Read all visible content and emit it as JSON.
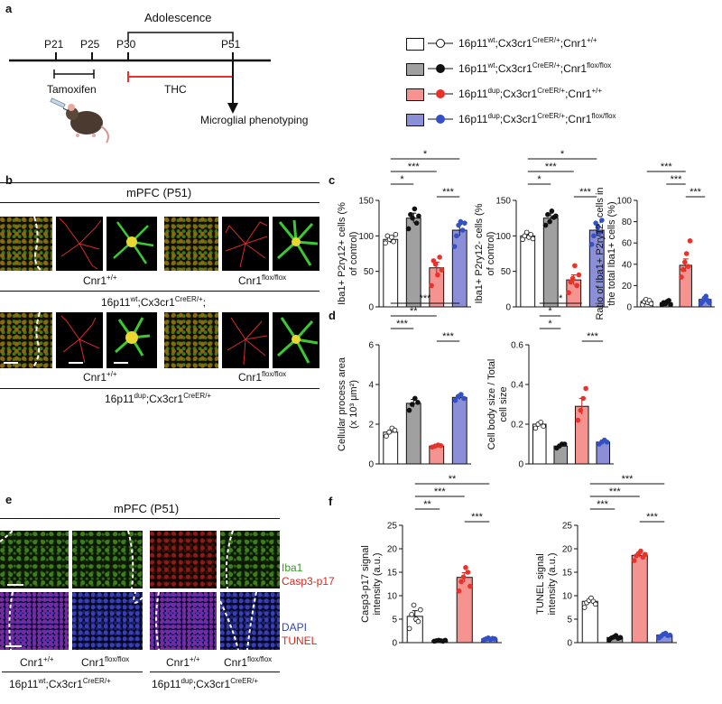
{
  "panel_a": {
    "label": "a",
    "adolescence": "Adolescence",
    "timepoints": [
      "P21",
      "P25",
      "P30",
      "P51"
    ],
    "tamoxifen": "Tamoxifen",
    "thc": "THC",
    "endpoint": "Microglial phenotyping"
  },
  "legend": {
    "entries": [
      {
        "base": "16p11",
        "sup1": "wt",
        "mid": ";Cx3cr1",
        "sup2": "CreER/+",
        "tail": ";Cnr1",
        "sup3": "+/+",
        "color": "#ffffff"
      },
      {
        "base": "16p11",
        "sup1": "wt",
        "mid": ";Cx3cr1",
        "sup2": "CreER/+",
        "tail": ";Cnr1",
        "sup3": "flox/flox",
        "color": "#a0a0a0"
      },
      {
        "base": "16p11",
        "sup1": "dup",
        "mid": ";Cx3cr1",
        "sup2": "CreER/+",
        "tail": ";Cnr1",
        "sup3": "+/+",
        "color": "#f4938f"
      },
      {
        "base": "16p11",
        "sup1": "dup",
        "mid": ";Cx3cr1",
        "sup2": "CreER/+",
        "tail": ";Cnr1",
        "sup3": "flox/flox",
        "color": "#8a8fd8"
      }
    ],
    "dot_colors": [
      "#ffffff",
      "#111111",
      "#e8322a",
      "#3350c8"
    ]
  },
  "panel_b": {
    "label": "b",
    "title": "mPFC (P51)",
    "cnr1_pp": "Cnr1",
    "cnr1_pp_sup": "+/+",
    "cnr1_ff": "Cnr1",
    "cnr1_ff_sup": "flox/flox",
    "wt_geno": "16p11",
    "wt_geno_sup": "wt",
    "wt_geno_mid": ";Cx3cr1",
    "wt_geno_sup2": "CreER/+",
    "wt_geno_tail": ";",
    "dup_geno": "16p11",
    "dup_geno_sup": "dup",
    "dup_geno_mid": ";Cx3cr1",
    "dup_geno_sup2": "CreER/+"
  },
  "panel_c": {
    "label": "c"
  },
  "panel_d": {
    "label": "d"
  },
  "panel_e": {
    "label": "e",
    "title": "mPFC (P51)",
    "iba1": "Iba1",
    "casp": "Casp3-p17",
    "dapi": "DAPI",
    "tunel": "TUNEL",
    "cnr1": "Cnr1",
    "pp": "+/+",
    "ff": "flox/flox",
    "wt_geno": "16p11",
    "wt_sup": "wt",
    "dup_sup": "dup",
    "geno_mid": ";Cx3cr1",
    "geno_sup2": "CreER/+"
  },
  "panel_f": {
    "label": "f"
  },
  "chart_data": [
    {
      "id": "c1",
      "type": "bar",
      "ylabel": "Iba1+ P2ry12+ cells (% of control)",
      "ylim": [
        0,
        150
      ],
      "ticks": [
        0,
        50,
        100,
        150
      ],
      "values": [
        95,
        125,
        55,
        108
      ],
      "errors": [
        5,
        7,
        8,
        8
      ],
      "points": [
        [
          90,
          100,
          95,
          98,
          92,
          102
        ],
        [
          110,
          130,
          125,
          138,
          118,
          128
        ],
        [
          30,
          65,
          60,
          45,
          70,
          52
        ],
        [
          85,
          100,
          115,
          120,
          108,
          118
        ]
      ],
      "significance": [
        {
          "from": 0,
          "to": 3,
          "label": "*"
        },
        {
          "from": 0,
          "to": 2,
          "label": "***"
        },
        {
          "from": 0,
          "to": 1,
          "label": "*"
        },
        {
          "from": 2,
          "to": 3,
          "label": "***"
        }
      ]
    },
    {
      "id": "c2",
      "type": "bar",
      "ylabel": "Iba1+ P2ry12- cells (% of control)",
      "ylim": [
        0,
        150
      ],
      "ticks": [
        0,
        50,
        100,
        150
      ],
      "values": [
        100,
        125,
        38,
        108
      ],
      "errors": [
        4,
        7,
        7,
        8
      ],
      "points": [
        [
          95,
          100,
          105,
          98,
          102,
          96
        ],
        [
          115,
          130,
          120,
          135,
          126,
          128
        ],
        [
          20,
          35,
          40,
          58,
          30,
          45
        ],
        [
          88,
          100,
          118,
          112,
          105,
          122
        ]
      ],
      "significance": [
        {
          "from": 0,
          "to": 3,
          "label": "*"
        },
        {
          "from": 0,
          "to": 2,
          "label": "***"
        },
        {
          "from": 0,
          "to": 1,
          "label": "*"
        },
        {
          "from": 2,
          "to": 3,
          "label": "***"
        }
      ]
    },
    {
      "id": "c3",
      "type": "bar",
      "ylabel": "Ratio of Iba1+ P2ry12- cells in the total Iba1+ cells (%)",
      "ylim": [
        0,
        100
      ],
      "ticks": [
        0,
        20,
        40,
        60,
        80,
        100
      ],
      "values": [
        5,
        4,
        39,
        7
      ],
      "errors": [
        1,
        1,
        6,
        1.5
      ],
      "points": [
        [
          2,
          5,
          7,
          4,
          6,
          3
        ],
        [
          2,
          4,
          3,
          5,
          6,
          2
        ],
        [
          28,
          35,
          42,
          50,
          38,
          62
        ],
        [
          3,
          5,
          8,
          10,
          6,
          4
        ]
      ],
      "significance": [
        {
          "from": 0,
          "to": 2,
          "label": "***"
        },
        {
          "from": 1,
          "to": 2,
          "label": "***"
        },
        {
          "from": 2,
          "to": 3,
          "label": "***"
        }
      ]
    },
    {
      "id": "d1",
      "type": "bar",
      "ylabel": "Cellular process area (x 10³ μm²)",
      "ylim": [
        0,
        6
      ],
      "ticks": [
        0,
        2,
        4,
        6
      ],
      "values": [
        1.6,
        3.05,
        0.9,
        3.35
      ],
      "errors": [
        0.1,
        0.2,
        0.05,
        0.1
      ],
      "points": [
        [
          1.4,
          1.6,
          1.8,
          1.7
        ],
        [
          2.7,
          3.0,
          3.3,
          3.1
        ],
        [
          0.85,
          0.9,
          0.95,
          0.92
        ],
        [
          3.2,
          3.4,
          3.5,
          3.3
        ]
      ],
      "significance": [
        {
          "from": 0,
          "to": 3,
          "label": "***"
        },
        {
          "from": 0,
          "to": 2,
          "label": "**"
        },
        {
          "from": 0,
          "to": 1,
          "label": "***"
        },
        {
          "from": 2,
          "to": 3,
          "label": "***"
        }
      ]
    },
    {
      "id": "d2",
      "type": "bar",
      "ylabel": "Cell body size / Total cell size",
      "ylim": [
        0,
        0.6
      ],
      "ticks": [
        0,
        0.2,
        0.4,
        0.6
      ],
      "values": [
        0.2,
        0.09,
        0.29,
        0.11
      ],
      "errors": [
        0.01,
        0.01,
        0.04,
        0.01
      ],
      "points": [
        [
          0.18,
          0.2,
          0.21,
          0.19
        ],
        [
          0.08,
          0.09,
          0.1,
          0.1
        ],
        [
          0.22,
          0.27,
          0.33,
          0.38
        ],
        [
          0.1,
          0.11,
          0.12,
          0.11
        ]
      ],
      "significance": [
        {
          "from": 0,
          "to": 2,
          "label": "*"
        },
        {
          "from": 0,
          "to": 1,
          "label": "*"
        },
        {
          "from": 0,
          "to": 1,
          "label": "*",
          "offset": true
        },
        {
          "from": 2,
          "to": 3,
          "label": "***"
        }
      ]
    },
    {
      "id": "f1",
      "type": "bar",
      "ylabel": "Casp3-p17 signal intensity (a.u.)",
      "ylim": [
        0,
        25
      ],
      "ticks": [
        0,
        5,
        10,
        15,
        20,
        25
      ],
      "values": [
        5.6,
        0.4,
        13.9,
        0.8
      ],
      "errors": [
        1.2,
        0.1,
        1,
        0.1
      ],
      "points": [
        [
          3,
          6,
          8,
          5,
          4.5,
          7
        ],
        [
          0.3,
          0.4,
          0.5,
          0.4,
          0.3,
          0.5
        ],
        [
          11,
          13,
          14,
          16,
          15,
          12
        ],
        [
          0.6,
          0.8,
          1,
          0.7,
          0.9,
          0.8
        ]
      ],
      "significance": [
        {
          "from": 0,
          "to": 3,
          "label": "**"
        },
        {
          "from": 0,
          "to": 2,
          "label": "***"
        },
        {
          "from": 0,
          "to": 1,
          "label": "**"
        },
        {
          "from": 2,
          "to": 3,
          "label": "***"
        }
      ]
    },
    {
      "id": "f2",
      "type": "bar",
      "ylabel": "TUNEL signal intensity (a.u.)",
      "ylim": [
        0,
        25
      ],
      "ticks": [
        0,
        5,
        10,
        15,
        20,
        25
      ],
      "values": [
        8.8,
        1.1,
        18.6,
        1.6
      ],
      "errors": [
        0.4,
        0.2,
        0.4,
        0.2
      ],
      "points": [
        [
          7.5,
          8.5,
          9,
          9.5,
          8.8,
          8.2
        ],
        [
          0.6,
          1,
          1.2,
          1.5,
          0.9,
          1.1
        ],
        [
          17.5,
          18.5,
          19,
          19.5,
          18.2,
          18.8
        ],
        [
          1,
          1.4,
          1.8,
          2,
          1.5,
          1.6
        ]
      ],
      "significance": [
        {
          "from": 0,
          "to": 3,
          "label": "***"
        },
        {
          "from": 0,
          "to": 2,
          "label": "***"
        },
        {
          "from": 0,
          "to": 1,
          "label": "***"
        },
        {
          "from": 2,
          "to": 3,
          "label": "***"
        }
      ]
    }
  ]
}
